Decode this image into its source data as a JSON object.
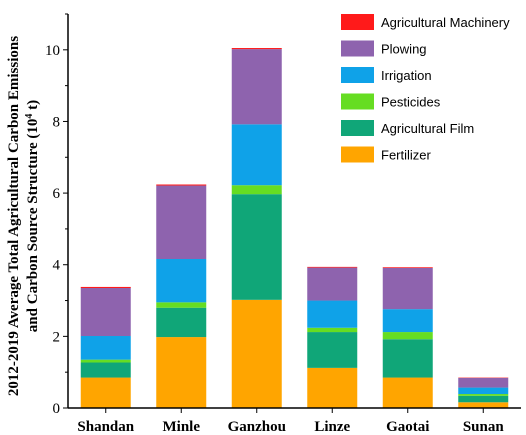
{
  "chart_data": {
    "type": "bar",
    "stacked": true,
    "categories": [
      "Shandan",
      "Minle",
      "Ganzhou",
      "Linze",
      "Gaotai",
      "Sunan"
    ],
    "series": [
      {
        "name": "Fertilizer",
        "color": "#FFA500",
        "values": [
          0.85,
          1.98,
          3.02,
          1.12,
          0.85,
          0.16
        ]
      },
      {
        "name": "Agricultural Film",
        "color": "#10A678",
        "values": [
          0.42,
          0.82,
          2.95,
          1.0,
          1.07,
          0.18
        ]
      },
      {
        "name": "Pesticides",
        "color": "#66DD22",
        "values": [
          0.08,
          0.15,
          0.25,
          0.12,
          0.2,
          0.05
        ]
      },
      {
        "name": "Irrigation",
        "color": "#0FA2E8",
        "values": [
          0.66,
          1.21,
          1.7,
          0.76,
          0.64,
          0.18
        ]
      },
      {
        "name": "Plowing",
        "color": "#8E63AE",
        "values": [
          1.34,
          2.05,
          2.1,
          0.92,
          1.15,
          0.27
        ]
      },
      {
        "name": "Agricultural Machinery",
        "color": "#FF1A1A",
        "values": [
          0.03,
          0.03,
          0.03,
          0.02,
          0.02,
          0.01
        ]
      }
    ],
    "ylim": [
      0,
      11
    ],
    "yticks": [
      "0",
      "2",
      "4",
      "6",
      "8",
      "10"
    ],
    "ylabel_line1": "2012-2019 Average Total Agricultural Carbon Emissions",
    "ylabel_line2": "and Carbon Source Structure (10",
    "ylabel_sup": "4",
    "ylabel_end": " t)",
    "legend_position": "top-right",
    "legend_order": [
      "Agricultural Machinery",
      "Plowing",
      "Irrigation",
      "Pesticides",
      "Agricultural Film",
      "Fertilizer"
    ]
  }
}
